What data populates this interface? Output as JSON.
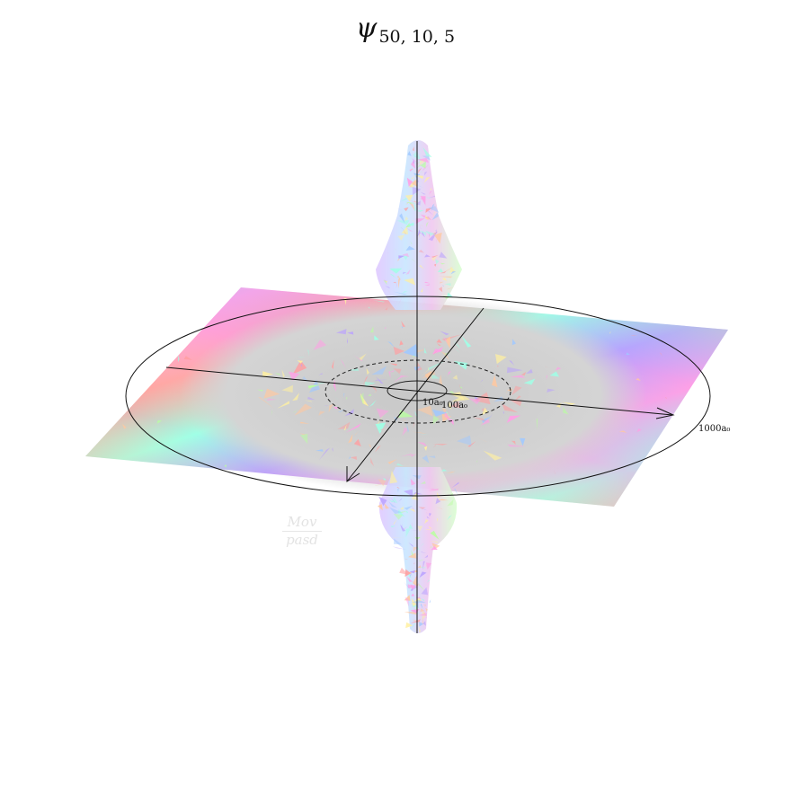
{
  "title": {
    "symbol": "ψ",
    "subscript": "50, 10, 5"
  },
  "radius_labels": {
    "inner": "10a₀",
    "middle": "100a₀",
    "outer": "1000a₀"
  },
  "watermark": {
    "top": "Mov",
    "bottom": "pasd"
  },
  "colors": {
    "hue_palette": [
      "#ff9ea0",
      "#ffa0e6",
      "#b9a0ff",
      "#a0c8ff",
      "#a0ffe6",
      "#b9ffa0",
      "#fff0a0",
      "#ffc8a0"
    ],
    "core_gray": "#cfcfcf",
    "axis": "#111111"
  }
}
